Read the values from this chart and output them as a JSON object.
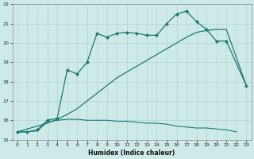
{
  "xlabel": "Humidex (Indice chaleur)",
  "bg_color": "#ceeae8",
  "grid_color": "#afd4d0",
  "line_color": "#1a7a6e",
  "line1_x": [
    0,
    1,
    2,
    3,
    4,
    5,
    6,
    7,
    8,
    9,
    10,
    11,
    12,
    13,
    14,
    15,
    16,
    17,
    18,
    19,
    20,
    21,
    23
  ],
  "line1_y": [
    15.4,
    15.4,
    15.5,
    16.0,
    16.1,
    18.6,
    18.4,
    19.0,
    20.5,
    20.3,
    20.5,
    20.55,
    20.5,
    20.4,
    20.4,
    21.0,
    21.5,
    21.65,
    21.1,
    20.7,
    20.1,
    20.1,
    17.8
  ],
  "line2_x": [
    0,
    3,
    4,
    5,
    6,
    7,
    8,
    9,
    10,
    11,
    12,
    13,
    14,
    15,
    16,
    17,
    18,
    19,
    20,
    21,
    23
  ],
  "line2_y": [
    15.4,
    15.85,
    16.05,
    16.3,
    16.6,
    17.0,
    17.4,
    17.8,
    18.2,
    18.5,
    18.8,
    19.1,
    19.4,
    19.7,
    20.0,
    20.3,
    20.55,
    20.65,
    20.7,
    20.7,
    17.8
  ],
  "line3_x": [
    0,
    1,
    2,
    3,
    4,
    5,
    6,
    7,
    8,
    9,
    10,
    11,
    12,
    13,
    14,
    15,
    16,
    17,
    18,
    19,
    20,
    21,
    22
  ],
  "line3_y": [
    15.4,
    15.4,
    15.45,
    15.9,
    16.0,
    16.05,
    16.05,
    16.0,
    16.0,
    16.0,
    15.95,
    15.95,
    15.9,
    15.85,
    15.85,
    15.8,
    15.7,
    15.65,
    15.6,
    15.6,
    15.55,
    15.5,
    15.4
  ],
  "ylim": [
    15,
    22
  ],
  "xlim": [
    -0.5,
    23.5
  ],
  "yticks": [
    15,
    16,
    17,
    18,
    19,
    20,
    21,
    22
  ],
  "xticks": [
    0,
    1,
    2,
    3,
    4,
    5,
    6,
    7,
    8,
    9,
    10,
    11,
    12,
    13,
    14,
    15,
    16,
    17,
    18,
    19,
    20,
    21,
    22,
    23
  ]
}
